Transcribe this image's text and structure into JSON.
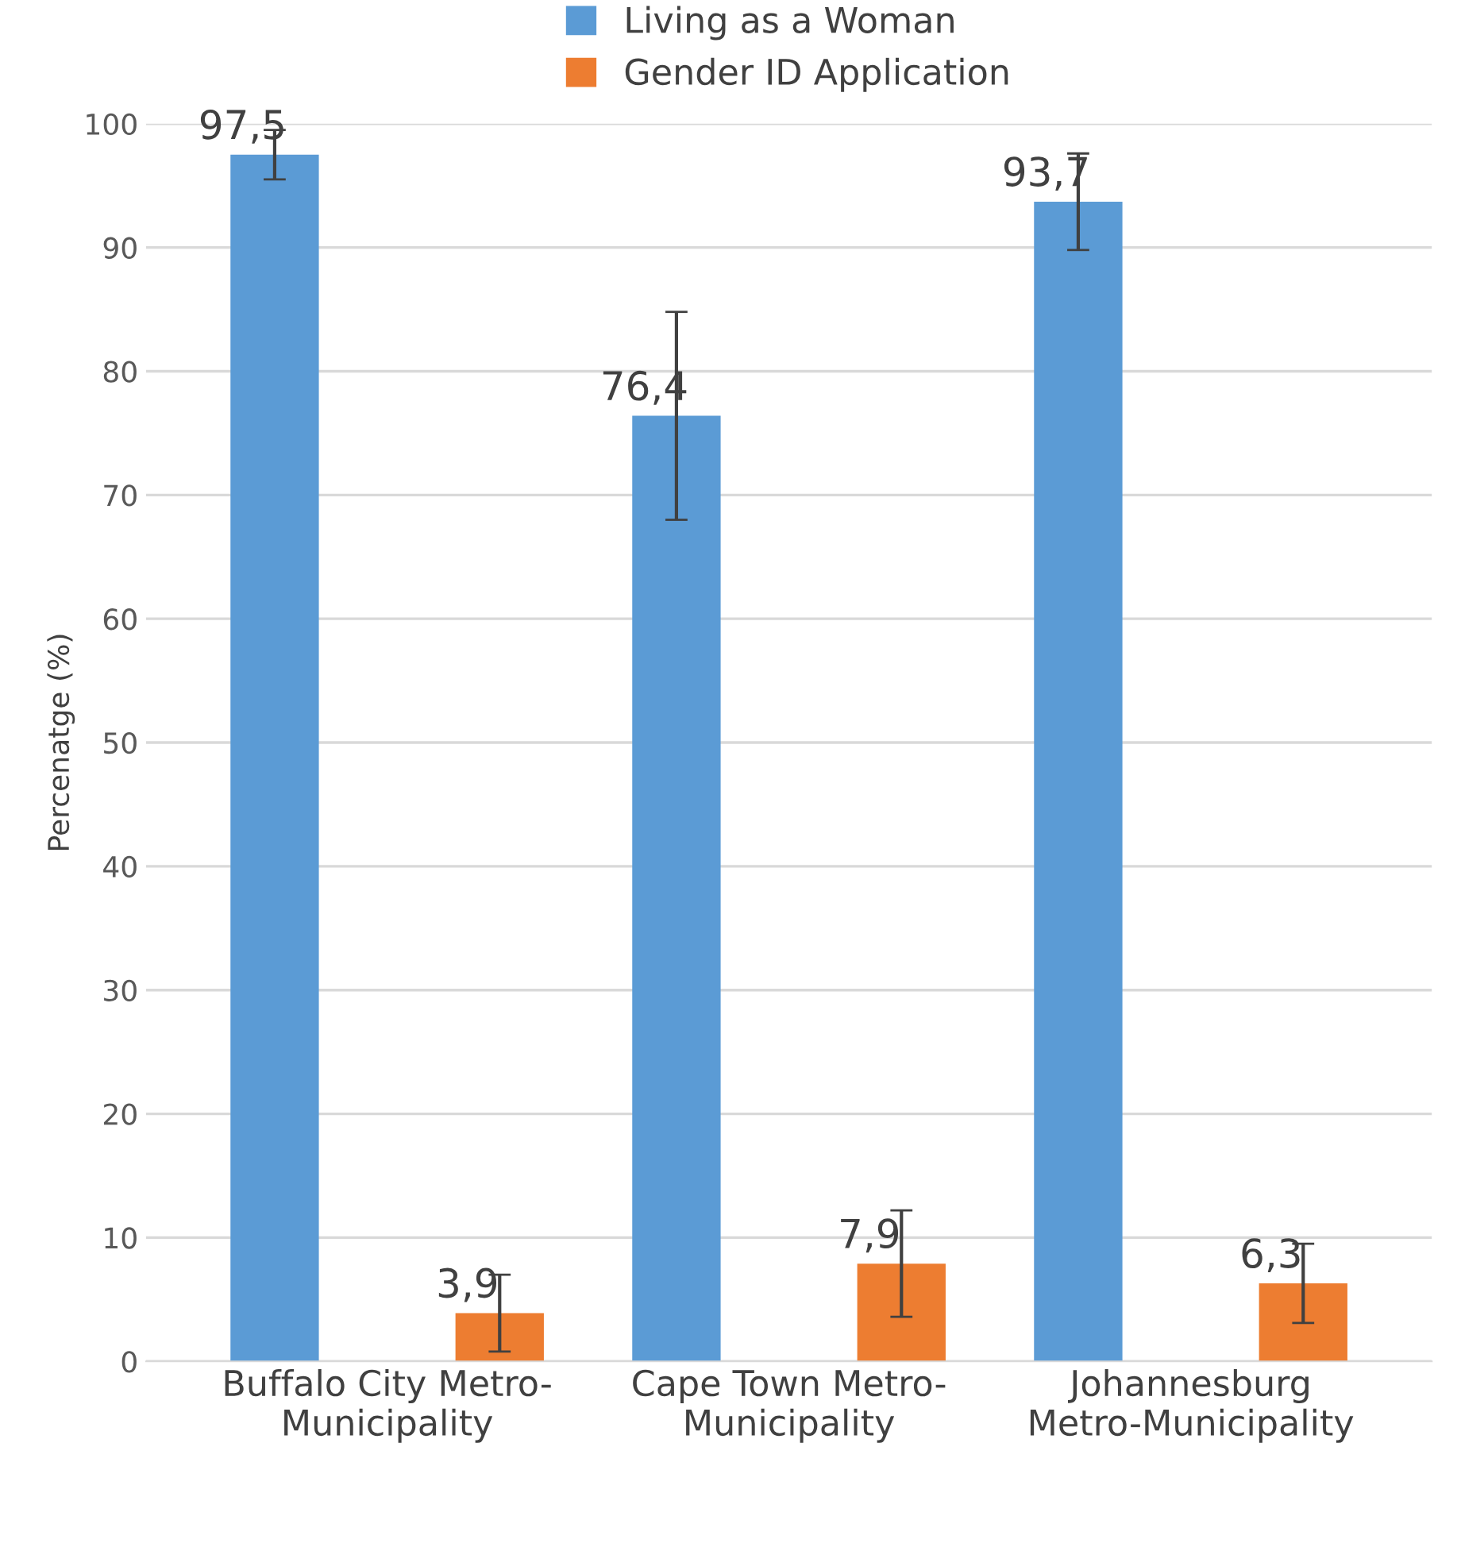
{
  "chart_data": {
    "type": "bar",
    "ylabel": "Percenatge (%)",
    "categories": [
      "Buffalo City Metro-\nMunicipality",
      "Cape Town Metro-\nMunicipality",
      "Johannesburg\nMetro-Municipality"
    ],
    "series": [
      {
        "name": "Living as a Woman",
        "color": "#5b9bd5",
        "values": [
          97.5,
          76.4,
          93.7
        ],
        "errors": [
          2.0,
          8.4,
          3.9
        ],
        "value_labels": [
          "97,5",
          "76,4",
          "93,7"
        ]
      },
      {
        "name": "Gender ID Application",
        "color": "#ed7d31",
        "values": [
          3.9,
          7.9,
          6.3
        ],
        "errors": [
          3.1,
          4.3,
          3.2
        ],
        "value_labels": [
          "3,9",
          "7,9",
          "6,3"
        ]
      }
    ],
    "ylim": [
      0,
      100
    ],
    "yticks": [
      0,
      10,
      20,
      30,
      40,
      50,
      60,
      70,
      80,
      90,
      100
    ],
    "grid": "y",
    "legend": "top"
  }
}
